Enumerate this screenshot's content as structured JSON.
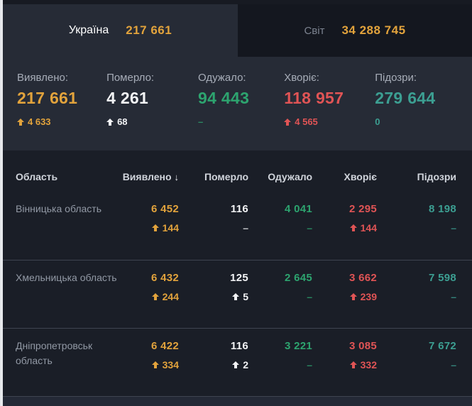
{
  "tabs": [
    {
      "label": "Україна",
      "value": "217 661"
    },
    {
      "label": "Світ",
      "value": "34 288 745"
    }
  ],
  "summary": [
    {
      "label": "Виявлено:",
      "value": "217 661",
      "delta": "4 633",
      "arrow": true,
      "color": "orange"
    },
    {
      "label": "Померло:",
      "value": "4 261",
      "delta": "68",
      "arrow": true,
      "color": "white"
    },
    {
      "label": "Одужало:",
      "value": "94 443",
      "delta": "–",
      "arrow": false,
      "color": "green"
    },
    {
      "label": "Хворіє:",
      "value": "118 957",
      "delta": "4 565",
      "arrow": true,
      "color": "red"
    },
    {
      "label": "Підозри:",
      "value": "279 644",
      "delta": "0",
      "arrow": false,
      "color": "teal"
    }
  ],
  "table": {
    "columns": [
      "Область",
      "Виявлено",
      "Померло",
      "Одужало",
      "Хворіє",
      "Підозри"
    ],
    "sort": {
      "column": "Виявлено",
      "direction": "desc",
      "arrow": "↓"
    },
    "column_colors": [
      "orange",
      "white",
      "green",
      "red",
      "teal"
    ],
    "rows": [
      {
        "region": "Вінницька область",
        "cells": [
          {
            "value": "6 452",
            "delta": "144",
            "arrow": true
          },
          {
            "value": "116",
            "delta": "–",
            "arrow": false
          },
          {
            "value": "4 041",
            "delta": "–",
            "arrow": false
          },
          {
            "value": "2 295",
            "delta": "144",
            "arrow": true
          },
          {
            "value": "8 198",
            "delta": "–",
            "arrow": false
          }
        ]
      },
      {
        "region": "Хмельницька область",
        "cells": [
          {
            "value": "6 432",
            "delta": "244",
            "arrow": true
          },
          {
            "value": "125",
            "delta": "5",
            "arrow": true
          },
          {
            "value": "2 645",
            "delta": "–",
            "arrow": false
          },
          {
            "value": "3 662",
            "delta": "239",
            "arrow": true
          },
          {
            "value": "7 598",
            "delta": "–",
            "arrow": false
          }
        ]
      },
      {
        "region": "Дніпропетровськ область",
        "cells": [
          {
            "value": "6 422",
            "delta": "334",
            "arrow": true
          },
          {
            "value": "116",
            "delta": "2",
            "arrow": true
          },
          {
            "value": "3 221",
            "delta": "–",
            "arrow": false
          },
          {
            "value": "3 085",
            "delta": "332",
            "arrow": true
          },
          {
            "value": "7 672",
            "delta": "–",
            "arrow": false
          }
        ]
      }
    ]
  },
  "colors": {
    "orange": "#e2a33c",
    "white": "#f2f3f5",
    "green": "#2da46f",
    "red": "#e05455",
    "teal": "#3c9f92",
    "panel": "#262b36",
    "table_bg": "#1a1e27",
    "tab_inactive": "#14171f",
    "top_strip": "#171a22",
    "footer_bg": "#242936",
    "divider": "#3f4450",
    "label": "#a7adb8",
    "region": "#9299a5",
    "header_text": "#d0d4db"
  }
}
